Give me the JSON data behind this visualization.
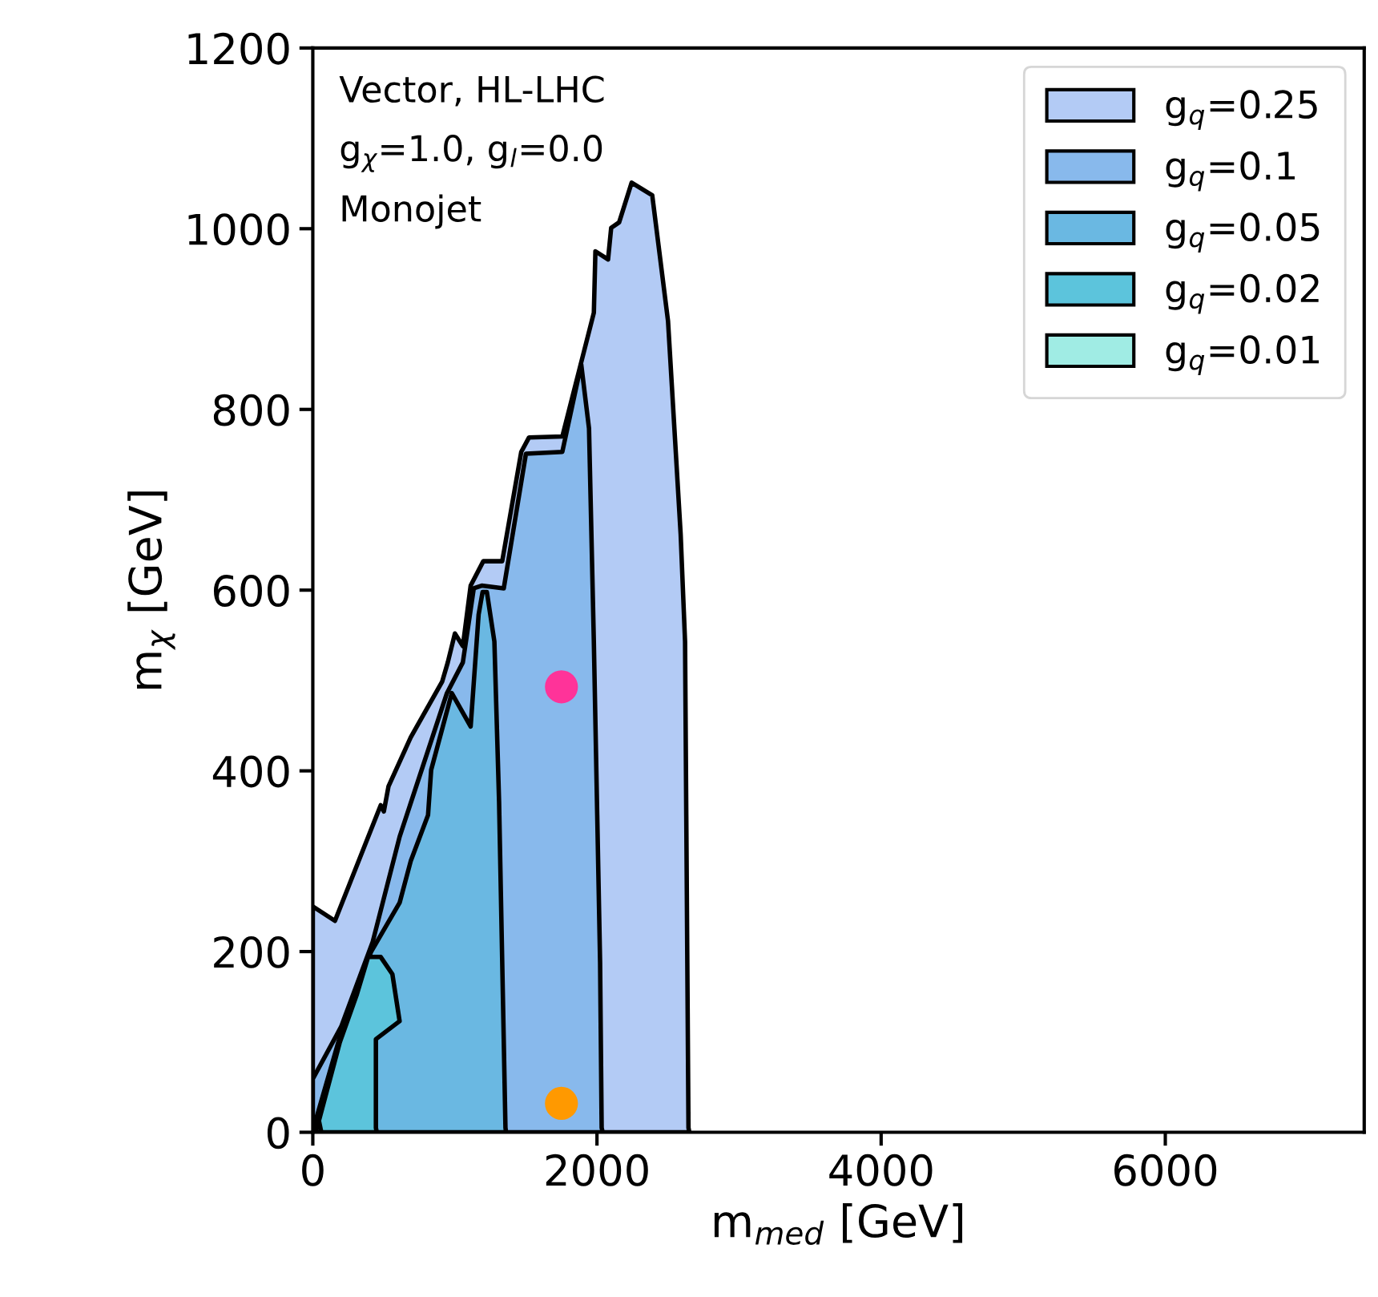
{
  "chart_data": {
    "type": "area",
    "xlabel": "m$_{med}$ [GeV]",
    "ylabel": "m$_{χ}$ [GeV]",
    "annotations": [
      "Vector, HL-LHC",
      "g$_{χ}$=1.0, g$_{l}$=0.0",
      "Monojet"
    ],
    "xlim": [
      0,
      7400
    ],
    "ylim": [
      0,
      1200
    ],
    "xticks": [
      0,
      2000,
      4000,
      6000
    ],
    "yticks": [
      0,
      200,
      400,
      600,
      800,
      1000,
      1200
    ],
    "legend": "top right",
    "grid": false,
    "series": [
      {
        "name": "g$_{q}$=0.25",
        "color": "#b3cbf5",
        "x": [
          0,
          156,
          478,
          500,
          533,
          689,
          911,
          950,
          1000,
          1056,
          1111,
          1200,
          1333,
          1467,
          1522,
          1756,
          1978,
          1989,
          2078,
          2100,
          2156,
          2244,
          2389,
          2500,
          2589,
          2620,
          2644,
          2650
        ],
        "values": [
          250,
          234,
          362,
          355,
          383,
          437,
          499,
          520,
          552,
          538,
          605,
          632,
          632,
          753,
          769,
          770,
          907,
          975,
          966,
          1001,
          1007,
          1051,
          1037,
          898,
          662,
          543,
          5,
          0
        ]
      },
      {
        "name": "g$_{q}$=0.1",
        "color": "#88b9ec",
        "x": [
          0,
          200,
          422,
          611,
          944,
          1056,
          1133,
          1189,
          1344,
          1500,
          1756,
          1889,
          1944,
          1978,
          2022,
          2033,
          2040
        ],
        "values": [
          59,
          117,
          211,
          327,
          486,
          520,
          602,
          605,
          602,
          751,
          753,
          850,
          779,
          543,
          188,
          5,
          0
        ]
      },
      {
        "name": "g$_{q}$=0.05",
        "color": "#6ab8e2",
        "x": [
          22,
          189,
          311,
          411,
          611,
          689,
          811,
          833,
          978,
          1111,
          1167,
          1195,
          1225,
          1278,
          1311,
          1356,
          1360
        ],
        "values": [
          14,
          105,
          160,
          200,
          254,
          300,
          351,
          401,
          486,
          449,
          573,
          598,
          598,
          543,
          366,
          5,
          0
        ]
      },
      {
        "name": "g$_{q}$=0.02",
        "color": "#5cc4dc",
        "x": [
          30,
          189,
          311,
          389,
          478,
          560,
          611,
          444,
          444,
          450
        ],
        "values": [
          5,
          99,
          153,
          194,
          194,
          175,
          123,
          103,
          5,
          0
        ]
      },
      {
        "name": "g$_{q}$=0.01",
        "color": "#a0ece4",
        "x": [
          20,
          40,
          60
        ],
        "values": [
          0,
          15,
          0
        ]
      },
      {
        "type": "scatter",
        "color": "#ff3399",
        "x": [
          1750
        ],
        "values": [
          493
        ]
      },
      {
        "type": "scatter",
        "color": "#ff9900",
        "x": [
          1750
        ],
        "values": [
          32
        ]
      }
    ]
  }
}
